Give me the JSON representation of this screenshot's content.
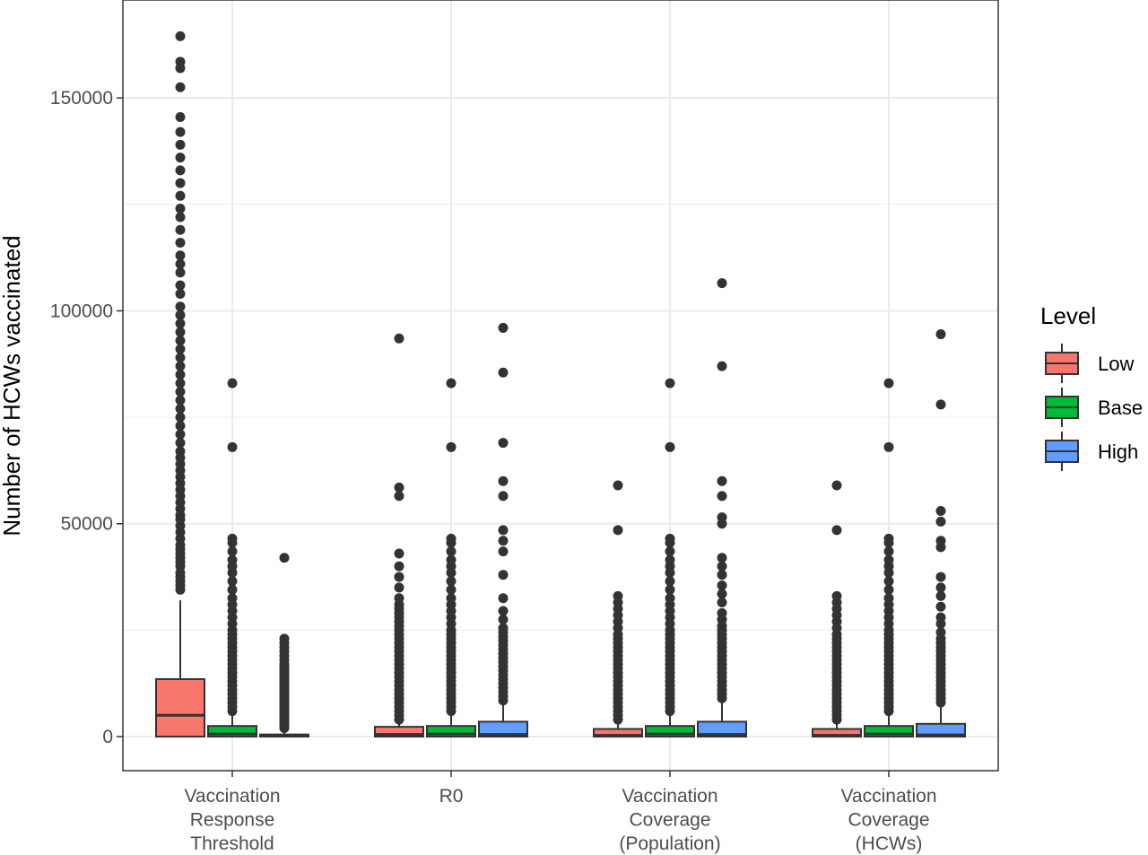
{
  "chart_data": {
    "type": "boxplot",
    "title": "",
    "xlabel": "",
    "ylabel": "Number of HCWs vaccinated",
    "ylim": [
      -8000,
      173000
    ],
    "yticks": [
      0,
      50000,
      100000,
      150000
    ],
    "ytick_labels": [
      "0",
      "50000",
      "100000",
      "150000"
    ],
    "grid": true,
    "legend": {
      "title": "Level",
      "placement": "right"
    },
    "colors": {
      "Low": "#F8766D",
      "Base": "#00BA38",
      "High": "#619CFF"
    },
    "categories": [
      {
        "label_lines": [
          "Vaccination",
          "Response",
          "Threshold"
        ]
      },
      {
        "label_lines": [
          "R0"
        ]
      },
      {
        "label_lines": [
          "Vaccination",
          "Coverage",
          "(Population)"
        ]
      },
      {
        "label_lines": [
          "Vaccination",
          "Coverage",
          "(HCWs)"
        ]
      }
    ],
    "series": [
      {
        "name": "Low",
        "boxes": [
          {
            "q1": 0,
            "median": 5000,
            "q3": 13500,
            "whisker_low": 0,
            "whisker_high": 32000,
            "outliers": [
              34500,
              35500,
              36500,
              37500,
              38500,
              40000,
              41000,
              42000,
              43000,
              44000,
              45000,
              46500,
              48000,
              49500,
              51000,
              52000,
              53500,
              55000,
              56500,
              58000,
              59500,
              61000,
              62500,
              64000,
              65500,
              67000,
              69000,
              71000,
              73000,
              75000,
              77000,
              79000,
              81000,
              83000,
              85000,
              87000,
              89000,
              91000,
              93000,
              95000,
              97000,
              99000,
              101000,
              104000,
              106000,
              109000,
              111000,
              113000,
              116000,
              119000,
              122000,
              124000,
              127000,
              130000,
              133000,
              136000,
              139000,
              142000,
              145500,
              152500,
              157000,
              158500,
              164500
            ]
          },
          {
            "q1": 0,
            "median": 500,
            "q3": 2300,
            "whisker_low": 0,
            "whisker_high": 3500,
            "outliers": [
              4000,
              5000,
              6000,
              7000,
              8000,
              9000,
              10000,
              11000,
              12000,
              13000,
              14000,
              15000,
              16000,
              17000,
              18000,
              19000,
              20000,
              21000,
              22000,
              23000,
              24000,
              25000,
              26000,
              27000,
              28000,
              29000,
              30000,
              31000,
              32500,
              35000,
              37500,
              40000,
              43000,
              56500,
              58500,
              93500
            ]
          },
          {
            "q1": 0,
            "median": 300,
            "q3": 1800,
            "whisker_low": 0,
            "whisker_high": 3500,
            "outliers": [
              4000,
              5000,
              6000,
              7000,
              8000,
              9000,
              10000,
              11000,
              12000,
              13000,
              14000,
              15000,
              16000,
              17000,
              18000,
              19000,
              20000,
              21000,
              22000,
              23000,
              24000,
              25500,
              27000,
              28500,
              30000,
              31500,
              33000,
              48500,
              59000
            ]
          },
          {
            "q1": 0,
            "median": 300,
            "q3": 1800,
            "whisker_low": 0,
            "whisker_high": 3500,
            "outliers": [
              4000,
              5000,
              6000,
              7000,
              8000,
              9000,
              10000,
              11000,
              12000,
              13000,
              14000,
              15000,
              16000,
              17000,
              18000,
              19000,
              20000,
              21000,
              22000,
              23000,
              24000,
              25500,
              27000,
              28500,
              30000,
              31500,
              33000,
              48500,
              59000
            ]
          }
        ]
      },
      {
        "name": "Base",
        "boxes": [
          {
            "q1": 0,
            "median": 600,
            "q3": 2500,
            "whisker_low": 0,
            "whisker_high": 5000,
            "outliers": [
              6000,
              7000,
              8000,
              9000,
              10000,
              11000,
              12000,
              13000,
              14000,
              15000,
              16000,
              17000,
              18000,
              19000,
              20000,
              21000,
              22000,
              23000,
              24000,
              25000,
              26500,
              28000,
              29500,
              31000,
              32500,
              34500,
              36500,
              38500,
              40000,
              41500,
              43500,
              45500,
              46500,
              68000,
              83000
            ]
          },
          {
            "q1": 0,
            "median": 600,
            "q3": 2500,
            "whisker_low": 0,
            "whisker_high": 5000,
            "outliers": [
              6000,
              7000,
              8000,
              9000,
              10000,
              11000,
              12000,
              13000,
              14000,
              15000,
              16000,
              17000,
              18000,
              19000,
              20000,
              21000,
              22000,
              23000,
              24000,
              25000,
              26500,
              28000,
              29500,
              31000,
              32500,
              34500,
              36500,
              38500,
              40000,
              41500,
              43500,
              45500,
              46500,
              68000,
              83000
            ]
          },
          {
            "q1": 0,
            "median": 600,
            "q3": 2500,
            "whisker_low": 0,
            "whisker_high": 5000,
            "outliers": [
              6000,
              7000,
              8000,
              9000,
              10000,
              11000,
              12000,
              13000,
              14000,
              15000,
              16000,
              17000,
              18000,
              19000,
              20000,
              21000,
              22000,
              23000,
              24000,
              25000,
              26500,
              28000,
              29500,
              31000,
              32500,
              34500,
              36500,
              38500,
              40000,
              41500,
              43500,
              45500,
              46500,
              68000,
              83000
            ]
          },
          {
            "q1": 0,
            "median": 600,
            "q3": 2500,
            "whisker_low": 0,
            "whisker_high": 5000,
            "outliers": [
              6000,
              7000,
              8000,
              9000,
              10000,
              11000,
              12000,
              13000,
              14000,
              15000,
              16000,
              17000,
              18000,
              19000,
              20000,
              21000,
              22000,
              23000,
              24000,
              25000,
              26500,
              28000,
              29500,
              31000,
              32500,
              34500,
              36500,
              38500,
              40000,
              41500,
              43500,
              45500,
              46500,
              68000,
              83000
            ]
          }
        ]
      },
      {
        "name": "High",
        "boxes": [
          {
            "q1": 0,
            "median": 100,
            "q3": 500,
            "whisker_low": 0,
            "whisker_high": 1500,
            "outliers": [
              2000,
              2500,
              3000,
              3500,
              4000,
              4500,
              5000,
              5500,
              6000,
              6500,
              7000,
              7500,
              8000,
              8500,
              9000,
              9500,
              10000,
              10500,
              11000,
              11500,
              12000,
              12500,
              13000,
              13500,
              14000,
              14500,
              15000,
              15500,
              16000,
              16500,
              17000,
              18000,
              19000,
              20000,
              21000,
              22000,
              23000,
              42000
            ]
          },
          {
            "q1": 0,
            "median": 500,
            "q3": 3500,
            "whisker_low": 0,
            "whisker_high": 7500,
            "outliers": [
              8500,
              9500,
              10500,
              11500,
              12500,
              13500,
              14500,
              15500,
              16500,
              17500,
              18500,
              19500,
              20500,
              21500,
              22500,
              23500,
              24500,
              25500,
              27500,
              29500,
              32500,
              38000,
              43500,
              46000,
              48500,
              56500,
              60000,
              69000,
              85500,
              96000
            ]
          },
          {
            "q1": 0,
            "median": 500,
            "q3": 3500,
            "whisker_low": 0,
            "whisker_high": 8000,
            "outliers": [
              9000,
              10000,
              11000,
              12000,
              13000,
              14000,
              15000,
              16000,
              17000,
              18000,
              19000,
              20000,
              21000,
              22000,
              23000,
              24000,
              25000,
              26000,
              27500,
              29000,
              31500,
              33500,
              35500,
              38000,
              40000,
              42000,
              50000,
              51500,
              56500,
              60000,
              87000,
              106500
            ]
          },
          {
            "q1": 0,
            "median": 400,
            "q3": 3000,
            "whisker_low": 0,
            "whisker_high": 7000,
            "outliers": [
              8000,
              9000,
              10000,
              11000,
              12000,
              13000,
              14000,
              15000,
              16000,
              17000,
              18000,
              19000,
              20000,
              21000,
              22000,
              23000,
              24500,
              26500,
              28000,
              30500,
              33000,
              35000,
              37500,
              44500,
              46000,
              50500,
              53000,
              78000,
              94500
            ]
          }
        ]
      }
    ]
  }
}
